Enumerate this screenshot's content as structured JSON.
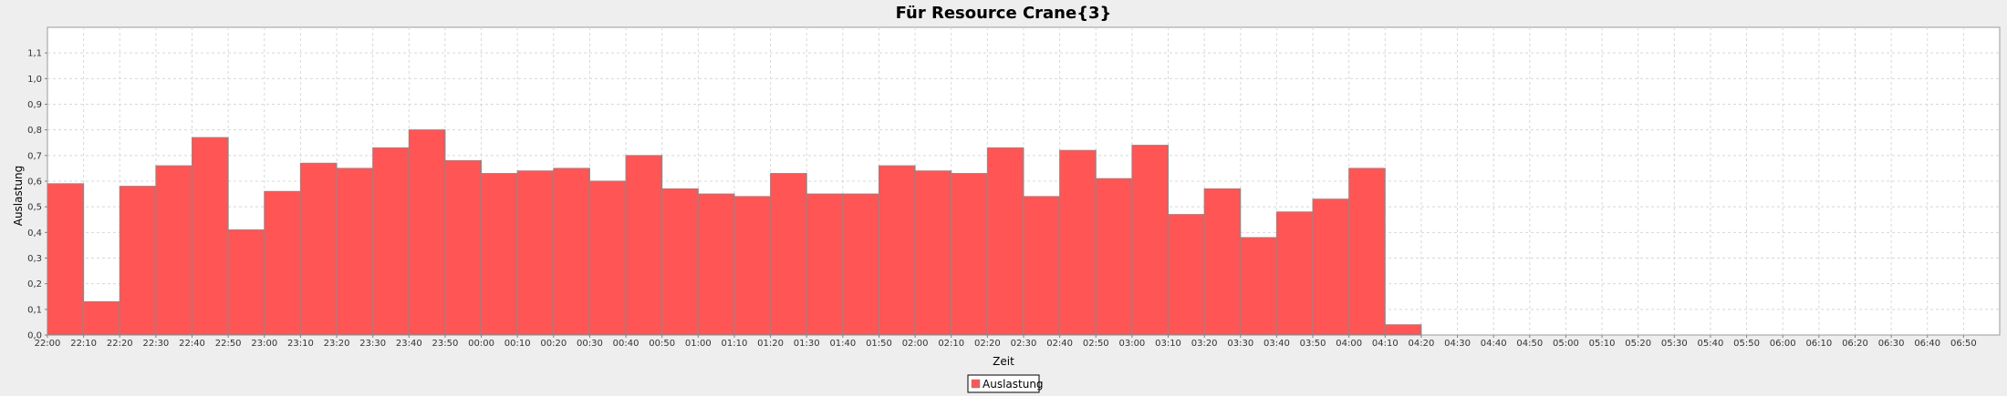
{
  "chart_data": {
    "type": "bar",
    "title": "Für Resource Crane{3}",
    "xlabel": "Zeit",
    "ylabel": "Auslastung",
    "ylim": [
      0,
      1.2
    ],
    "y_ticks": [
      "0,0",
      "0,1",
      "0,2",
      "0,3",
      "0,4",
      "0,5",
      "0,6",
      "0,7",
      "0,8",
      "0,9",
      "1,0",
      "1,1"
    ],
    "grid": true,
    "legend_position": "bottom-center",
    "colors": {
      "bar": "#ff5555",
      "bar_edge": "#8a8a8a",
      "plot_bg": "#ffffff",
      "grid": "#d8d8d8",
      "page_bg": "#eeeeee"
    },
    "x_ticks": [
      "22:00",
      "22:10",
      "22:20",
      "22:30",
      "22:40",
      "22:50",
      "23:00",
      "23:10",
      "23:20",
      "23:30",
      "23:40",
      "23:50",
      "00:00",
      "00:10",
      "00:20",
      "00:30",
      "00:40",
      "00:50",
      "01:00",
      "01:10",
      "01:20",
      "01:30",
      "01:40",
      "01:50",
      "02:00",
      "02:10",
      "02:20",
      "02:30",
      "02:40",
      "02:50",
      "03:00",
      "03:10",
      "03:20",
      "03:30",
      "03:40",
      "03:50",
      "04:00",
      "04:10",
      "04:20",
      "04:30",
      "04:40",
      "04:50",
      "05:00",
      "05:10",
      "05:20",
      "05:30",
      "05:40",
      "05:50",
      "06:00",
      "06:10",
      "06:20",
      "06:30",
      "06:40",
      "06:50"
    ],
    "series": [
      {
        "name": "Auslastung",
        "values": [
          0.59,
          0.13,
          0.58,
          0.66,
          0.77,
          0.41,
          0.56,
          0.67,
          0.65,
          0.73,
          0.8,
          0.68,
          0.63,
          0.64,
          0.65,
          0.6,
          0.7,
          0.57,
          0.55,
          0.54,
          0.63,
          0.55,
          0.55,
          0.66,
          0.64,
          0.63,
          0.73,
          0.54,
          0.72,
          0.61,
          0.74,
          0.47,
          0.57,
          0.38,
          0.48,
          0.53,
          0.65,
          0.04
        ]
      }
    ]
  }
}
